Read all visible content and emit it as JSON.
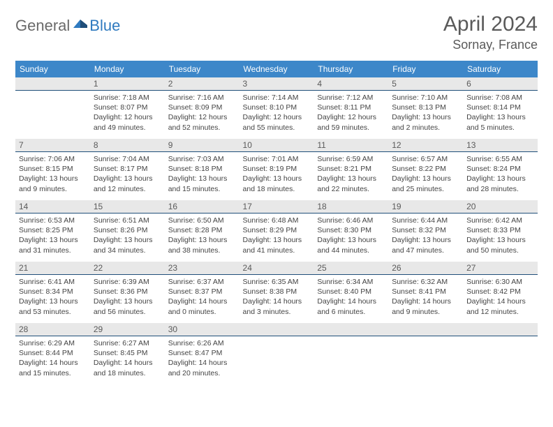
{
  "brand": {
    "general": "General",
    "blue": "Blue"
  },
  "title": "April 2024",
  "location": "Sornay, France",
  "colors": {
    "header_bg": "#3d87c9",
    "header_text": "#ffffff",
    "daynum_bg": "#e8e8e8",
    "daynum_border": "#1f4e79",
    "text": "#444444",
    "title_color": "#5a5a5a",
    "logo_gray": "#6a6a6a",
    "logo_blue": "#2f7abf"
  },
  "weekdays": [
    "Sunday",
    "Monday",
    "Tuesday",
    "Wednesday",
    "Thursday",
    "Friday",
    "Saturday"
  ],
  "weeks": [
    [
      null,
      {
        "d": "1",
        "sr": "7:18 AM",
        "ss": "8:07 PM",
        "dl": "12 hours and 49 minutes."
      },
      {
        "d": "2",
        "sr": "7:16 AM",
        "ss": "8:09 PM",
        "dl": "12 hours and 52 minutes."
      },
      {
        "d": "3",
        "sr": "7:14 AM",
        "ss": "8:10 PM",
        "dl": "12 hours and 55 minutes."
      },
      {
        "d": "4",
        "sr": "7:12 AM",
        "ss": "8:11 PM",
        "dl": "12 hours and 59 minutes."
      },
      {
        "d": "5",
        "sr": "7:10 AM",
        "ss": "8:13 PM",
        "dl": "13 hours and 2 minutes."
      },
      {
        "d": "6",
        "sr": "7:08 AM",
        "ss": "8:14 PM",
        "dl": "13 hours and 5 minutes."
      }
    ],
    [
      {
        "d": "7",
        "sr": "7:06 AM",
        "ss": "8:15 PM",
        "dl": "13 hours and 9 minutes."
      },
      {
        "d": "8",
        "sr": "7:04 AM",
        "ss": "8:17 PM",
        "dl": "13 hours and 12 minutes."
      },
      {
        "d": "9",
        "sr": "7:03 AM",
        "ss": "8:18 PM",
        "dl": "13 hours and 15 minutes."
      },
      {
        "d": "10",
        "sr": "7:01 AM",
        "ss": "8:19 PM",
        "dl": "13 hours and 18 minutes."
      },
      {
        "d": "11",
        "sr": "6:59 AM",
        "ss": "8:21 PM",
        "dl": "13 hours and 22 minutes."
      },
      {
        "d": "12",
        "sr": "6:57 AM",
        "ss": "8:22 PM",
        "dl": "13 hours and 25 minutes."
      },
      {
        "d": "13",
        "sr": "6:55 AM",
        "ss": "8:24 PM",
        "dl": "13 hours and 28 minutes."
      }
    ],
    [
      {
        "d": "14",
        "sr": "6:53 AM",
        "ss": "8:25 PM",
        "dl": "13 hours and 31 minutes."
      },
      {
        "d": "15",
        "sr": "6:51 AM",
        "ss": "8:26 PM",
        "dl": "13 hours and 34 minutes."
      },
      {
        "d": "16",
        "sr": "6:50 AM",
        "ss": "8:28 PM",
        "dl": "13 hours and 38 minutes."
      },
      {
        "d": "17",
        "sr": "6:48 AM",
        "ss": "8:29 PM",
        "dl": "13 hours and 41 minutes."
      },
      {
        "d": "18",
        "sr": "6:46 AM",
        "ss": "8:30 PM",
        "dl": "13 hours and 44 minutes."
      },
      {
        "d": "19",
        "sr": "6:44 AM",
        "ss": "8:32 PM",
        "dl": "13 hours and 47 minutes."
      },
      {
        "d": "20",
        "sr": "6:42 AM",
        "ss": "8:33 PM",
        "dl": "13 hours and 50 minutes."
      }
    ],
    [
      {
        "d": "21",
        "sr": "6:41 AM",
        "ss": "8:34 PM",
        "dl": "13 hours and 53 minutes."
      },
      {
        "d": "22",
        "sr": "6:39 AM",
        "ss": "8:36 PM",
        "dl": "13 hours and 56 minutes."
      },
      {
        "d": "23",
        "sr": "6:37 AM",
        "ss": "8:37 PM",
        "dl": "14 hours and 0 minutes."
      },
      {
        "d": "24",
        "sr": "6:35 AM",
        "ss": "8:38 PM",
        "dl": "14 hours and 3 minutes."
      },
      {
        "d": "25",
        "sr": "6:34 AM",
        "ss": "8:40 PM",
        "dl": "14 hours and 6 minutes."
      },
      {
        "d": "26",
        "sr": "6:32 AM",
        "ss": "8:41 PM",
        "dl": "14 hours and 9 minutes."
      },
      {
        "d": "27",
        "sr": "6:30 AM",
        "ss": "8:42 PM",
        "dl": "14 hours and 12 minutes."
      }
    ],
    [
      {
        "d": "28",
        "sr": "6:29 AM",
        "ss": "8:44 PM",
        "dl": "14 hours and 15 minutes."
      },
      {
        "d": "29",
        "sr": "6:27 AM",
        "ss": "8:45 PM",
        "dl": "14 hours and 18 minutes."
      },
      {
        "d": "30",
        "sr": "6:26 AM",
        "ss": "8:47 PM",
        "dl": "14 hours and 20 minutes."
      },
      null,
      null,
      null,
      null
    ]
  ],
  "labels": {
    "sunrise": "Sunrise:",
    "sunset": "Sunset:",
    "daylight": "Daylight:"
  }
}
